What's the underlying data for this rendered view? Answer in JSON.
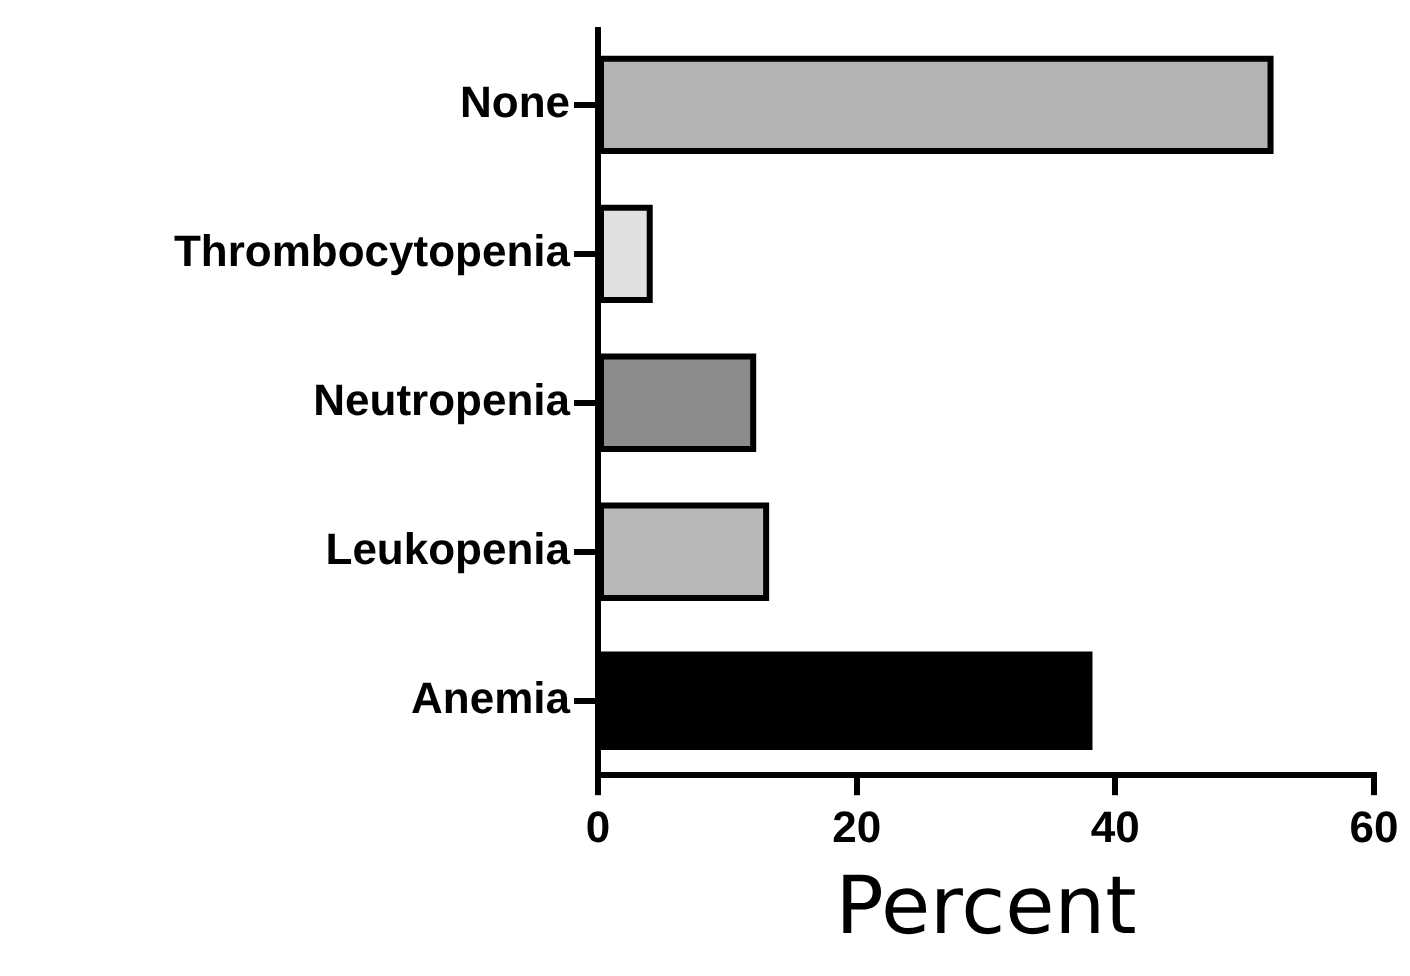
{
  "chart_data": {
    "type": "bar",
    "orientation": "horizontal",
    "xlabel": "Percent",
    "categories": [
      "None",
      "Thrombocytopenia",
      "Neutropenia",
      "Leukopenia",
      "Anemia"
    ],
    "values": [
      52,
      4,
      12,
      13,
      38
    ],
    "colors": [
      "#b3b3b3",
      "#e0e0e0",
      "#8c8c8c",
      "#b8b8b8",
      "#000000"
    ],
    "xlim": [
      0,
      60
    ],
    "xticks": [
      0,
      20,
      40,
      60
    ],
    "grid": false,
    "legend": false
  }
}
